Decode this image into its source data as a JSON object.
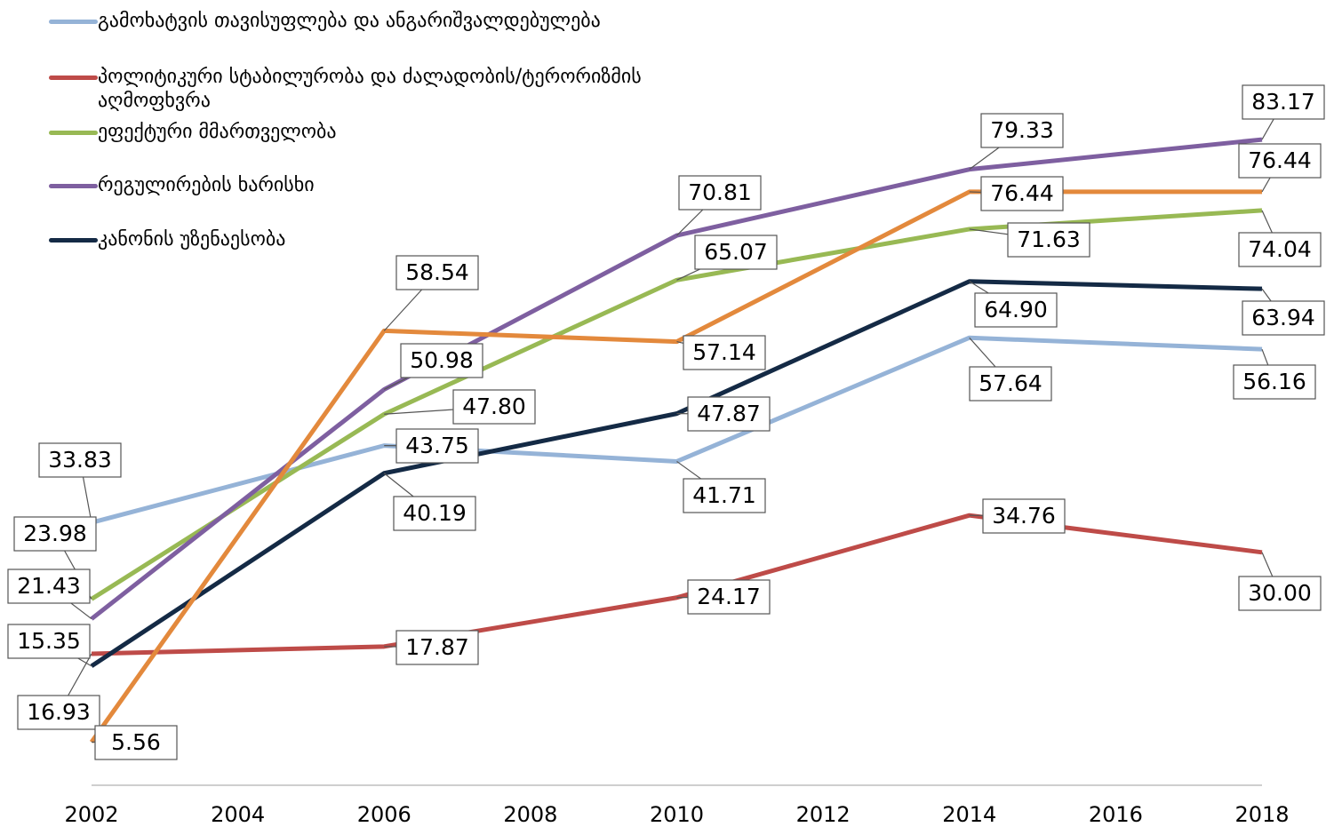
{
  "chart_data": {
    "type": "line",
    "x": [
      2002,
      2006,
      2010,
      2014,
      2018
    ],
    "xlim": [
      2002,
      2018
    ],
    "xticks": [
      2002,
      2004,
      2006,
      2008,
      2010,
      2012,
      2014,
      2016,
      2018
    ],
    "ylim": [
      0,
      100
    ],
    "grid": false,
    "legend": "top-left",
    "series": [
      {
        "name": "გამოხატვის თავისუფლება და ანგარიშვალდებულება",
        "color": "#95b3d7",
        "values": [
          33.83,
          43.75,
          41.71,
          57.64,
          56.16
        ]
      },
      {
        "name": "პოლიტიკური სტაბილურობა და ძალადობის/ტერორიზმის აღმოფხვრა",
        "color": "#be4b48",
        "values": [
          16.93,
          17.87,
          24.17,
          34.76,
          30.0
        ],
        "value_labels": [
          "16.93",
          "17.87",
          "24.17",
          "34.76",
          "30.00"
        ]
      },
      {
        "name": "ეფექტური მმართველობა",
        "color": "#98b954",
        "values": [
          23.98,
          47.8,
          65.07,
          71.63,
          74.04
        ],
        "value_labels": [
          "23.98",
          "47.80",
          "65.07",
          "71.63",
          "74.04"
        ]
      },
      {
        "name": "რეგულირების ხარისხი",
        "color": "#7e5fa0",
        "values": [
          21.43,
          50.98,
          70.81,
          79.33,
          83.17
        ]
      },
      {
        "name": "კანონის უზენაესობა",
        "color": "#142a45",
        "values": [
          15.35,
          40.19,
          47.87,
          64.9,
          63.94
        ],
        "value_labels": [
          "15.35",
          "40.19",
          "47.87",
          "64.90",
          "63.94"
        ]
      },
      {
        "color": "#e3893c",
        "values": [
          5.56,
          58.54,
          57.14,
          76.44,
          76.44
        ]
      }
    ]
  }
}
